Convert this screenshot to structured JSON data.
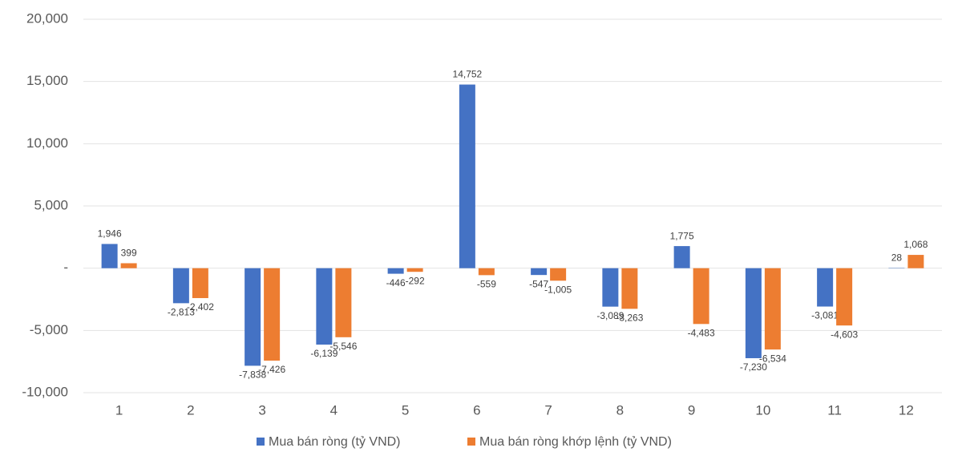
{
  "chart_data": {
    "type": "bar",
    "categories": [
      "1",
      "2",
      "3",
      "4",
      "5",
      "6",
      "7",
      "8",
      "9",
      "10",
      "11",
      "12"
    ],
    "series": [
      {
        "name": "Mua bán ròng (tỷ VND)",
        "color": "#4472c4",
        "values": [
          1946,
          -2813,
          -7838,
          -6139,
          -446,
          14752,
          -547,
          -3089,
          1775,
          -7230,
          -3081,
          28
        ],
        "value_labels": [
          "1,946",
          "-2,813",
          "-7,838",
          "-6,139",
          "-446",
          "14,752",
          "-547",
          "-3,089",
          "1,775",
          "-7,230",
          "-3,081",
          "28"
        ]
      },
      {
        "name": "Mua bán ròng khớp lệnh (tỷ VND)",
        "color": "#ed7d31",
        "values": [
          399,
          -2402,
          -7426,
          -5546,
          -292,
          -559,
          -1005,
          -3263,
          -4483,
          -6534,
          -4603,
          1068
        ],
        "value_labels": [
          "399",
          "-2,402",
          "-7,426",
          "-5,546",
          "-292",
          "-559",
          "-1,005",
          "-3,263",
          "-4,483",
          "-6,534",
          "-4,603",
          "1,068"
        ]
      }
    ],
    "ylim": [
      -10000,
      20000
    ],
    "yticks": [
      {
        "value": -10000,
        "label": "-10,000"
      },
      {
        "value": -5000,
        "label": "-5,000"
      },
      {
        "value": 0,
        "label": "-"
      },
      {
        "value": 5000,
        "label": "5,000"
      },
      {
        "value": 10000,
        "label": "10,000"
      },
      {
        "value": 15000,
        "label": "15,000"
      },
      {
        "value": 20000,
        "label": "20,000"
      }
    ],
    "grid": true
  }
}
